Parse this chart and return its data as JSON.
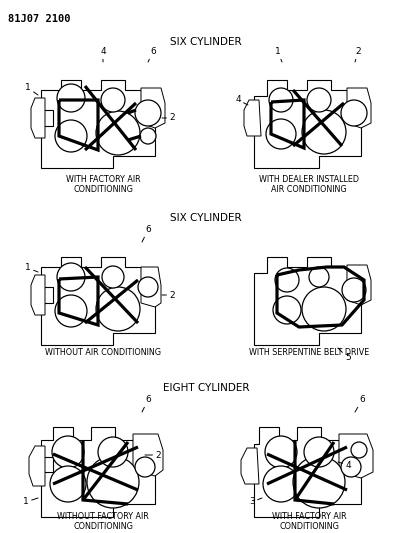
{
  "title_code": "81J07 2100",
  "bg_color": "#ffffff",
  "line_color": "#1a1a1a",
  "belt_color": "#000000",
  "text_color": "#000000",
  "row1_title": "SIX CYLINDER",
  "row2_title": "SIX CYLINDER",
  "row3_title": "EIGHT CYLINDER",
  "label_tl": "WITH FACTORY AIR\nCONDITIONING",
  "label_tr": "WITH DEALER INSTALLED\nAIR CONDITIONING",
  "label_ml": "WITHOUT AIR CONDITIONING",
  "label_mr": "WITH SERPENTINE BELT DRIVE",
  "label_bl": "WITHOUT FACTORY AIR\nCONDITIONING",
  "label_br": "WITH FACTORY AIR\nCONDITIONING"
}
